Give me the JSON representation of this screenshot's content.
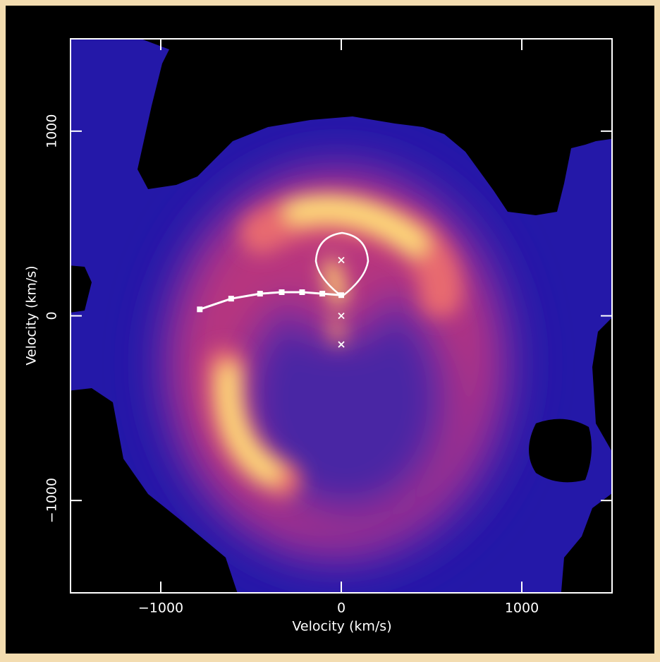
{
  "chart_data": {
    "type": "scatter",
    "xlabel": "Velocity (km/s)",
    "ylabel": "Velocity (km/s)",
    "xlim": [
      -1500,
      1500
    ],
    "ylim": [
      -1500,
      1500
    ],
    "xticks": [
      {
        "value": -1000,
        "label": "−1000"
      },
      0,
      1000
    ],
    "yticks": [
      {
        "value": -1000,
        "label": "−1000"
      },
      0,
      1000
    ],
    "series": [
      {
        "color": "#ffffff",
        "line": true,
        "marker": "square",
        "x": [
          -784,
          -610,
          -450,
          -330,
          -217,
          -105,
          0
        ],
        "values": [
          35,
          93,
          120,
          128,
          128,
          120,
          112
        ]
      },
      {
        "color": "#ffffff",
        "line": false,
        "marker": "x",
        "x": [
          0,
          0,
          0
        ],
        "values": [
          302,
          0,
          -155
        ]
      }
    ]
  }
}
